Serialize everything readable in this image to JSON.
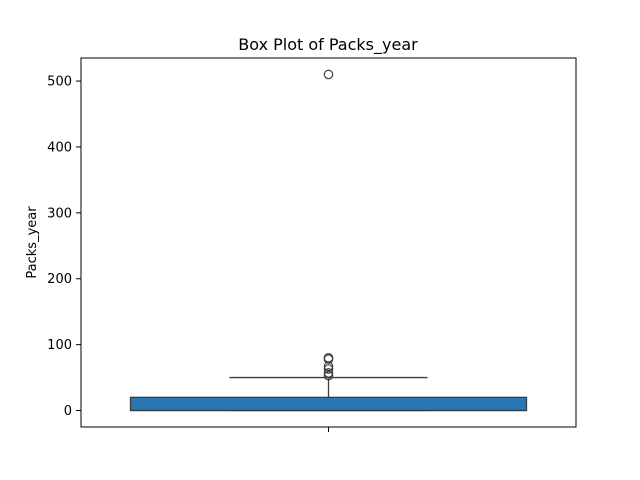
{
  "chart_data": {
    "type": "box",
    "title": "Box Plot of Packs_year",
    "xlabel": "",
    "ylabel": "Packs_year",
    "ylim": [
      -25,
      535
    ],
    "yticks": [
      0,
      100,
      200,
      300,
      400,
      500
    ],
    "ytick_labels": [
      "0",
      "100",
      "200",
      "300",
      "400",
      "500"
    ],
    "grid": false,
    "legend": "none",
    "box": {
      "whisker_low": 0,
      "q1": 0,
      "median": 0,
      "q3": 20,
      "whisker_high": 50,
      "fill_color": "#2878b5",
      "line_color": "#3d3d3d"
    },
    "outliers": [
      53,
      57,
      63,
      67,
      78,
      80,
      510
    ]
  }
}
